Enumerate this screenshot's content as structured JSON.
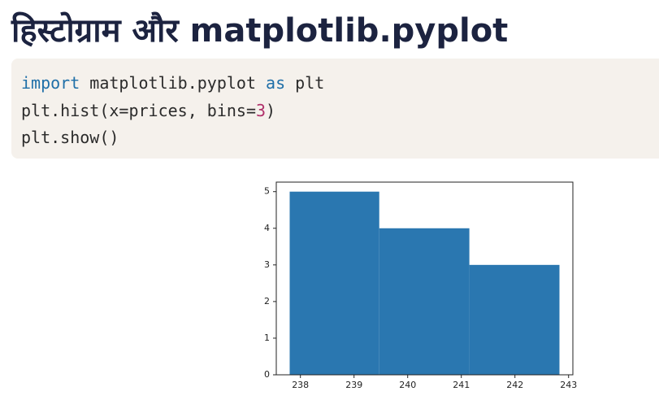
{
  "header": {
    "title": "हिस्टोग्राम और matplotlib.pyplot"
  },
  "code": {
    "lines": [
      [
        {
          "text": "import",
          "color": "#1f6fa8"
        },
        {
          "text": " matplotlib.pyplot ",
          "color": "#2b2b2b"
        },
        {
          "text": "as",
          "color": "#1f6fa8"
        },
        {
          "text": " plt",
          "color": "#2b2b2b"
        }
      ],
      [
        {
          "text": "plt.hist(x=prices, bins=",
          "color": "#2b2b2b"
        },
        {
          "text": "3",
          "color": "#b0306a"
        },
        {
          "text": ")",
          "color": "#2b2b2b"
        }
      ],
      [
        {
          "text": "plt.show()",
          "color": "#2b2b2b"
        }
      ]
    ]
  },
  "chart_data": {
    "type": "histogram",
    "bins": [
      237.8,
      239.47,
      241.15,
      242.83
    ],
    "values": [
      5,
      4,
      3
    ],
    "color": "#2a77b0",
    "xlim": [
      237.55,
      243.08
    ],
    "ylim": [
      0,
      5.26
    ],
    "xticks": [
      238,
      239,
      240,
      241,
      242,
      243
    ],
    "yticks": [
      0,
      1,
      2,
      3,
      4,
      5
    ]
  }
}
